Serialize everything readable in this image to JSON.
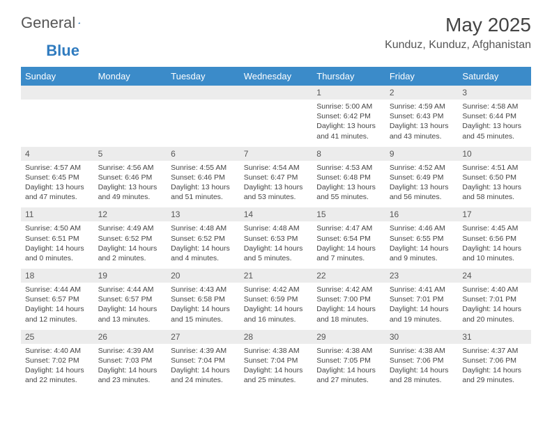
{
  "logo": {
    "text1": "General",
    "text2": "Blue"
  },
  "title": "May 2025",
  "location": "Kunduz, Kunduz, Afghanistan",
  "colors": {
    "header_bg": "#3b8bc9",
    "header_text": "#ffffff",
    "daynum_bg": "#ececec",
    "text": "#444444",
    "logo_accent": "#2f7bbf"
  },
  "weekdays": [
    "Sunday",
    "Monday",
    "Tuesday",
    "Wednesday",
    "Thursday",
    "Friday",
    "Saturday"
  ],
  "weeks": [
    {
      "nums": [
        "",
        "",
        "",
        "",
        "1",
        "2",
        "3"
      ],
      "cells": [
        null,
        null,
        null,
        null,
        {
          "sunrise": "5:00 AM",
          "sunset": "6:42 PM",
          "daylight": "13 hours and 41 minutes."
        },
        {
          "sunrise": "4:59 AM",
          "sunset": "6:43 PM",
          "daylight": "13 hours and 43 minutes."
        },
        {
          "sunrise": "4:58 AM",
          "sunset": "6:44 PM",
          "daylight": "13 hours and 45 minutes."
        }
      ]
    },
    {
      "nums": [
        "4",
        "5",
        "6",
        "7",
        "8",
        "9",
        "10"
      ],
      "cells": [
        {
          "sunrise": "4:57 AM",
          "sunset": "6:45 PM",
          "daylight": "13 hours and 47 minutes."
        },
        {
          "sunrise": "4:56 AM",
          "sunset": "6:46 PM",
          "daylight": "13 hours and 49 minutes."
        },
        {
          "sunrise": "4:55 AM",
          "sunset": "6:46 PM",
          "daylight": "13 hours and 51 minutes."
        },
        {
          "sunrise": "4:54 AM",
          "sunset": "6:47 PM",
          "daylight": "13 hours and 53 minutes."
        },
        {
          "sunrise": "4:53 AM",
          "sunset": "6:48 PM",
          "daylight": "13 hours and 55 minutes."
        },
        {
          "sunrise": "4:52 AM",
          "sunset": "6:49 PM",
          "daylight": "13 hours and 56 minutes."
        },
        {
          "sunrise": "4:51 AM",
          "sunset": "6:50 PM",
          "daylight": "13 hours and 58 minutes."
        }
      ]
    },
    {
      "nums": [
        "11",
        "12",
        "13",
        "14",
        "15",
        "16",
        "17"
      ],
      "cells": [
        {
          "sunrise": "4:50 AM",
          "sunset": "6:51 PM",
          "daylight": "14 hours and 0 minutes."
        },
        {
          "sunrise": "4:49 AM",
          "sunset": "6:52 PM",
          "daylight": "14 hours and 2 minutes."
        },
        {
          "sunrise": "4:48 AM",
          "sunset": "6:52 PM",
          "daylight": "14 hours and 4 minutes."
        },
        {
          "sunrise": "4:48 AM",
          "sunset": "6:53 PM",
          "daylight": "14 hours and 5 minutes."
        },
        {
          "sunrise": "4:47 AM",
          "sunset": "6:54 PM",
          "daylight": "14 hours and 7 minutes."
        },
        {
          "sunrise": "4:46 AM",
          "sunset": "6:55 PM",
          "daylight": "14 hours and 9 minutes."
        },
        {
          "sunrise": "4:45 AM",
          "sunset": "6:56 PM",
          "daylight": "14 hours and 10 minutes."
        }
      ]
    },
    {
      "nums": [
        "18",
        "19",
        "20",
        "21",
        "22",
        "23",
        "24"
      ],
      "cells": [
        {
          "sunrise": "4:44 AM",
          "sunset": "6:57 PM",
          "daylight": "14 hours and 12 minutes."
        },
        {
          "sunrise": "4:44 AM",
          "sunset": "6:57 PM",
          "daylight": "14 hours and 13 minutes."
        },
        {
          "sunrise": "4:43 AM",
          "sunset": "6:58 PM",
          "daylight": "14 hours and 15 minutes."
        },
        {
          "sunrise": "4:42 AM",
          "sunset": "6:59 PM",
          "daylight": "14 hours and 16 minutes."
        },
        {
          "sunrise": "4:42 AM",
          "sunset": "7:00 PM",
          "daylight": "14 hours and 18 minutes."
        },
        {
          "sunrise": "4:41 AM",
          "sunset": "7:01 PM",
          "daylight": "14 hours and 19 minutes."
        },
        {
          "sunrise": "4:40 AM",
          "sunset": "7:01 PM",
          "daylight": "14 hours and 20 minutes."
        }
      ]
    },
    {
      "nums": [
        "25",
        "26",
        "27",
        "28",
        "29",
        "30",
        "31"
      ],
      "cells": [
        {
          "sunrise": "4:40 AM",
          "sunset": "7:02 PM",
          "daylight": "14 hours and 22 minutes."
        },
        {
          "sunrise": "4:39 AM",
          "sunset": "7:03 PM",
          "daylight": "14 hours and 23 minutes."
        },
        {
          "sunrise": "4:39 AM",
          "sunset": "7:04 PM",
          "daylight": "14 hours and 24 minutes."
        },
        {
          "sunrise": "4:38 AM",
          "sunset": "7:04 PM",
          "daylight": "14 hours and 25 minutes."
        },
        {
          "sunrise": "4:38 AM",
          "sunset": "7:05 PM",
          "daylight": "14 hours and 27 minutes."
        },
        {
          "sunrise": "4:38 AM",
          "sunset": "7:06 PM",
          "daylight": "14 hours and 28 minutes."
        },
        {
          "sunrise": "4:37 AM",
          "sunset": "7:06 PM",
          "daylight": "14 hours and 29 minutes."
        }
      ]
    }
  ],
  "labels": {
    "sunrise": "Sunrise:",
    "sunset": "Sunset:",
    "daylight": "Daylight:"
  }
}
